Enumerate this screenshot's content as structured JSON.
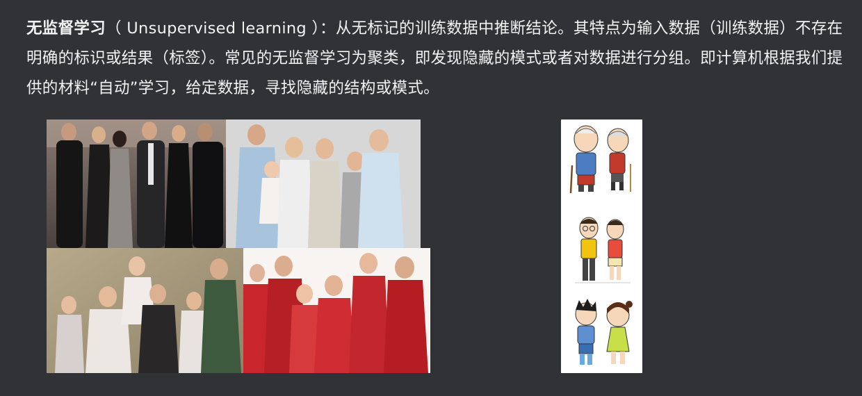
{
  "paragraph": {
    "term": "无监督学习",
    "text": "（ Unsupervised learning ）：从无标记的训练数据中推断结论。其特点为输入数据（训练数据）不存在明确的标识或结果（标签）。常见的无监督学习为聚类，即发现隐藏的模式或者对数据进行分组。即计算机根据我们提供的材料“自动”学习，给定数据，寻找隐藏的结构或模式。"
  },
  "colors": {
    "background": "#303236",
    "text": "#f2f2f2",
    "family_red": "#c8262c",
    "cartoon_panel": "#ffffff"
  },
  "images": {
    "people_photos": [
      "group-of-friends-photo",
      "family-portrait-photo",
      "elderly-family-photo",
      "chinese-new-year-family-photo"
    ],
    "cartoon_pairs": [
      "elderly-couple-cartoon",
      "adult-couple-cartoon",
      "children-cartoon"
    ]
  }
}
